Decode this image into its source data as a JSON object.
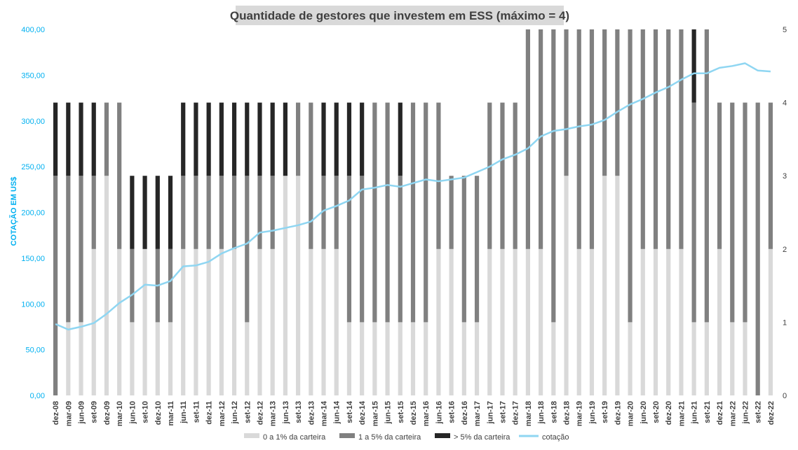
{
  "chart_data": {
    "type": "bar",
    "title": "Quantidade de gestores que investem em ESS (máximo = 4)",
    "ylabel": "COTAÇÃO EM US$",
    "ylim_left": [
      0,
      400
    ],
    "ylim_right": [
      0,
      5
    ],
    "left_ticks": [
      "0,00",
      "50,00",
      "100,00",
      "150,00",
      "200,00",
      "250,00",
      "300,00",
      "350,00",
      "400,00"
    ],
    "right_ticks": [
      "0",
      "1",
      "2",
      "3",
      "4",
      "5"
    ],
    "x_labels": [
      "dez-08",
      "mar-09",
      "jun-09",
      "set-09",
      "dez-09",
      "mar-10",
      "jun-10",
      "set-10",
      "dez-10",
      "mar-11",
      "jun-11",
      "set-11",
      "dez-11",
      "mar-12",
      "jun-12",
      "set-12",
      "dez-12",
      "mar-13",
      "jun-13",
      "set-13",
      "dez-13",
      "mar-14",
      "jun-14",
      "set-14",
      "dez-14",
      "mar-15",
      "jun-15",
      "set-15",
      "dez-15",
      "mar-16",
      "jun-16",
      "set-16",
      "dez-16",
      "mar-17",
      "jun-17",
      "set-17",
      "dez-17",
      "mar-18",
      "jun-18",
      "set-18",
      "dez-18",
      "mar-19",
      "jun-19",
      "set-19",
      "dez-19",
      "mar-20",
      "jun-20",
      "set-20",
      "dez-20",
      "mar-21",
      "jun-21",
      "set-21",
      "dez-21",
      "mar-22",
      "jun-22",
      "set-22",
      "dez-22"
    ],
    "bar_series": [
      {
        "name": "0 a 1% da carteira",
        "color": "#d9d9d9",
        "values": [
          0,
          1,
          1,
          2,
          3,
          2,
          1,
          2,
          1,
          1,
          2,
          2,
          2,
          2,
          2,
          1,
          2,
          2,
          3,
          3,
          2,
          2,
          2,
          1,
          1,
          1,
          1,
          1,
          1,
          1,
          2,
          2,
          1,
          1,
          2,
          2,
          2,
          2,
          2,
          1,
          3,
          2,
          2,
          3,
          3,
          1,
          2,
          2,
          2,
          2,
          1,
          1,
          2,
          1,
          1,
          0,
          2
        ]
      },
      {
        "name": "1 a 5% da carteira",
        "color": "#808080",
        "values": [
          3,
          2,
          2,
          1,
          1,
          2,
          1,
          0,
          1,
          1,
          1,
          1,
          1,
          1,
          1,
          2,
          1,
          1,
          0,
          1,
          2,
          1,
          1,
          2,
          2,
          3,
          3,
          2,
          3,
          3,
          2,
          1,
          2,
          2,
          2,
          2,
          2,
          3,
          3,
          4,
          2,
          3,
          3,
          2,
          2,
          4,
          3,
          3,
          3,
          3,
          3,
          4,
          2,
          3,
          3,
          4,
          2
        ]
      },
      {
        "name": "> 5% da carteira",
        "color": "#262626",
        "values": [
          1,
          1,
          1,
          1,
          0,
          0,
          1,
          1,
          1,
          1,
          1,
          1,
          1,
          1,
          1,
          1,
          1,
          1,
          1,
          0,
          0,
          1,
          1,
          1,
          1,
          0,
          0,
          1,
          0,
          0,
          0,
          0,
          0,
          0,
          0,
          0,
          0,
          0,
          0,
          0,
          0,
          0,
          0,
          0,
          0,
          0,
          0,
          0,
          0,
          0,
          1,
          0,
          0,
          0,
          0,
          0,
          0
        ]
      }
    ],
    "line_series": {
      "name": "cotação",
      "color": "#8fd6f2",
      "values": [
        78,
        72,
        75,
        79,
        89,
        101,
        110,
        121,
        120,
        125,
        141,
        142,
        146,
        155,
        161,
        166,
        178,
        180,
        183,
        186,
        190,
        202,
        207,
        213,
        225,
        227,
        230,
        228,
        232,
        236,
        234,
        236,
        238,
        244,
        250,
        258,
        263,
        270,
        283,
        289,
        291,
        294,
        296,
        301,
        310,
        318,
        324,
        331,
        337,
        345,
        352,
        352,
        358,
        360,
        363,
        355,
        354
      ]
    },
    "legend": [
      "0 a 1% da carteira",
      "1 a 5% da carteira",
      "> 5% da carteira",
      "cotação"
    ],
    "legend_position": "bottom",
    "grid": false
  }
}
